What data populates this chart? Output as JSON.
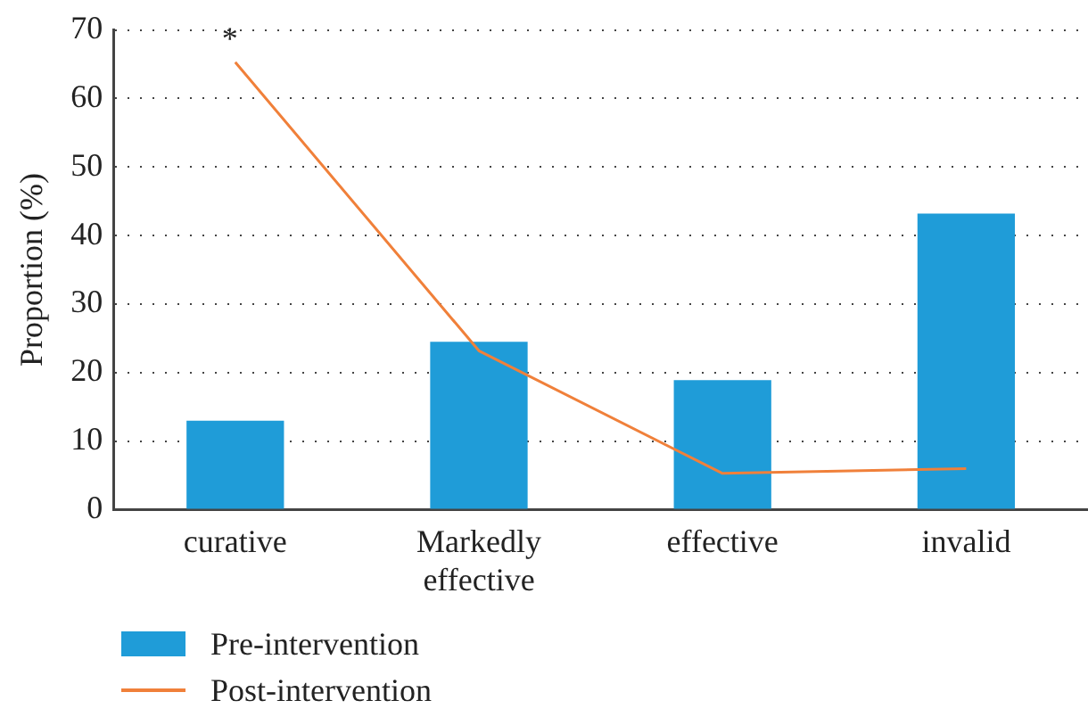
{
  "chart_data": {
    "type": "bar",
    "ylabel": "Proportion (%)",
    "categories": [
      "curative",
      "Markedly effective",
      "effective",
      "invalid"
    ],
    "series": [
      {
        "name": "Pre-intervention",
        "color": "#1f9cd8",
        "values": [
          13.0,
          24.5,
          18.9,
          43.2
        ]
      },
      {
        "name": "Post-intervention",
        "type": "line",
        "color": "#f0803a",
        "values": [
          65.3,
          23.2,
          5.3,
          6.0
        ]
      }
    ],
    "ylim": [
      0,
      70
    ],
    "yticks": [
      0,
      10,
      20,
      30,
      40,
      50,
      60,
      70
    ],
    "grid": "y",
    "legend": "bottom left",
    "marker": "none",
    "annotations": [
      {
        "text": "*",
        "x": "curative",
        "y": 65.3
      }
    ]
  }
}
